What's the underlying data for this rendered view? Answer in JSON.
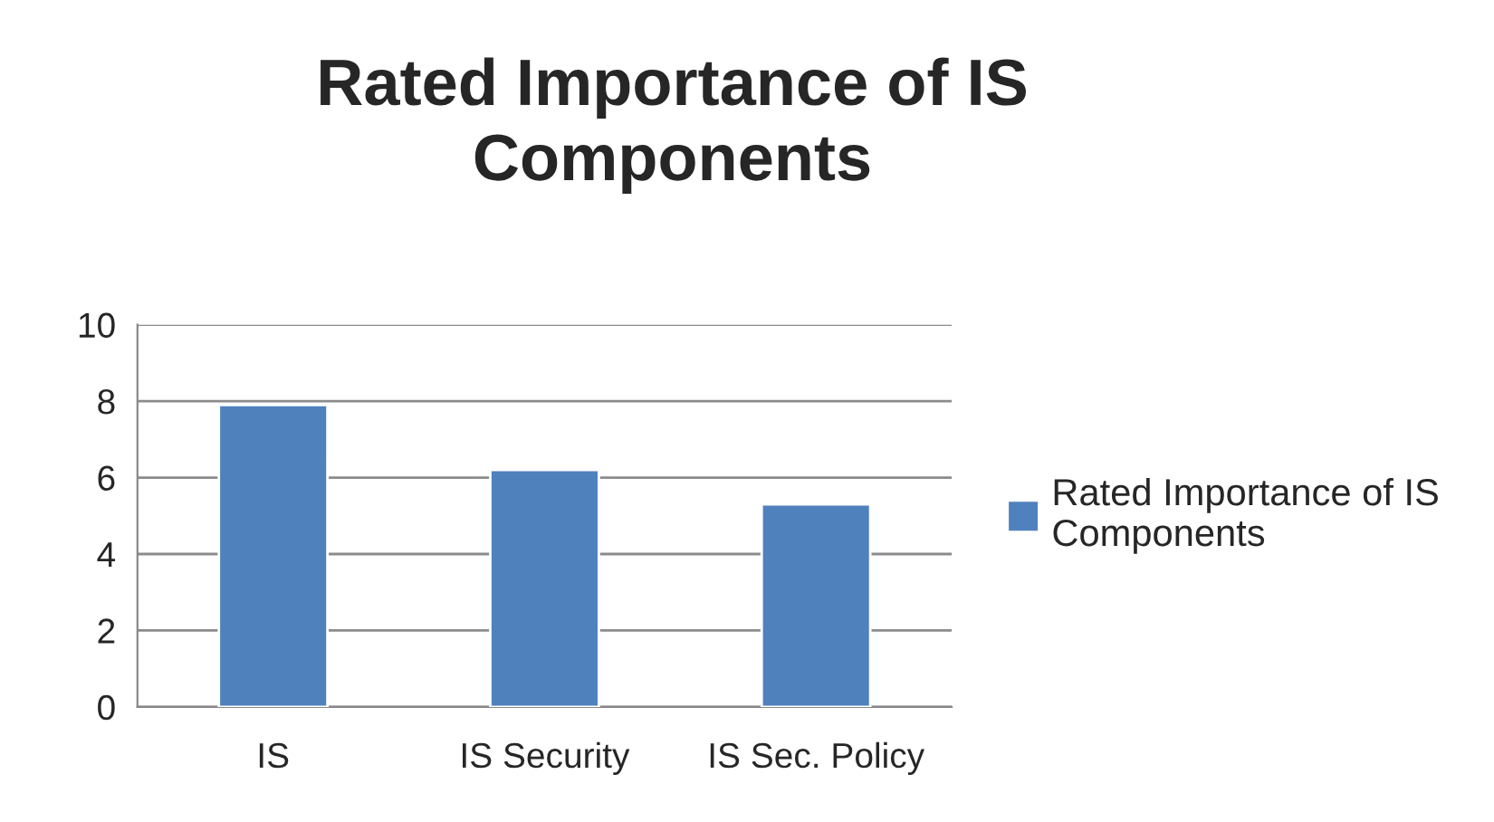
{
  "chart_data": {
    "type": "bar",
    "title": "Rated Importance of IS Components",
    "categories": [
      "IS",
      "IS Security",
      "IS Sec. Policy"
    ],
    "series": [
      {
        "name": "Rated Importance of IS Components",
        "color": "#4f81bd",
        "values": [
          7.9,
          6.2,
          5.3
        ]
      }
    ],
    "ylim": [
      0,
      10
    ],
    "yticks": [
      0,
      2,
      4,
      6,
      8,
      10
    ],
    "grid": "y",
    "legend": "right"
  }
}
